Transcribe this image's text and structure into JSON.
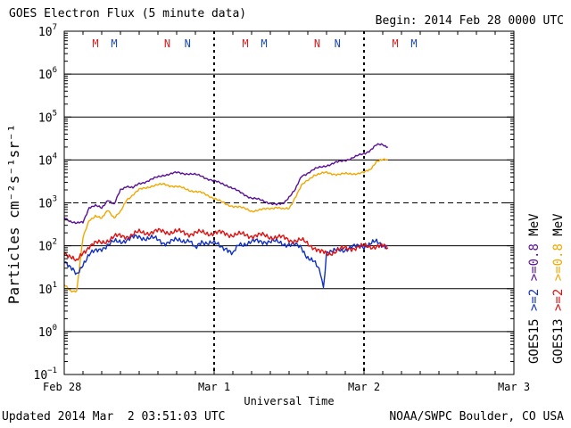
{
  "header": {
    "title": "GOES Electron Flux (5 minute data)",
    "begin": "Begin: 2014 Feb 28 0000 UTC"
  },
  "footer": {
    "updated": "Updated 2014 Mar  2 03:51:03 UTC",
    "credit": "NOAA/SWPC Boulder, CO USA"
  },
  "colors": {
    "goes15_e08": "#5a0f96",
    "goes13_e08": "#f0a800",
    "goes15_e2": "#1030c0",
    "goes13_e2": "#e01010",
    "marker_m": "#d02020",
    "marker_n": "#1848c0"
  },
  "chart_data": {
    "type": "line",
    "title": "GOES Electron Flux (5 minute data)",
    "xlabel": "Universal Time",
    "ylabel": "Particles cm⁻²s⁻¹sr⁻¹",
    "y_scale": "log",
    "ylim": [
      0.1,
      10000000
    ],
    "y_ticks": [
      {
        "value": 10000000,
        "base": "10",
        "exp": "7"
      },
      {
        "value": 1000000,
        "base": "10",
        "exp": "6"
      },
      {
        "value": 100000,
        "base": "10",
        "exp": "5"
      },
      {
        "value": 10000,
        "base": "10",
        "exp": "4"
      },
      {
        "value": 1000,
        "base": "10",
        "exp": "3"
      },
      {
        "value": 100,
        "base": "10",
        "exp": "2"
      },
      {
        "value": 10,
        "base": "10",
        "exp": "1"
      },
      {
        "value": 1,
        "base": "10",
        "exp": "0"
      },
      {
        "value": 0.1,
        "base": "10",
        "exp": "−1"
      }
    ],
    "xlim": [
      "2014-02-28T00:00",
      "2014-03-03T00:00"
    ],
    "x_ticks": [
      {
        "value": "2014-02-28T00:00",
        "label": "Feb 28"
      },
      {
        "value": "2014-03-01T00:00",
        "label": "Mar 1"
      },
      {
        "value": "2014-03-02T00:00",
        "label": "Mar 2"
      },
      {
        "value": "2014-03-03T00:00",
        "label": "Mar 3"
      }
    ],
    "alert_threshold": 1000,
    "markers": [
      {
        "label": "M",
        "time": "2014-02-28T05:00",
        "color": "#d02020"
      },
      {
        "label": "M",
        "time": "2014-02-28T08:00",
        "color": "#1848c0"
      },
      {
        "label": "N",
        "time": "2014-02-28T16:30",
        "color": "#d02020"
      },
      {
        "label": "N",
        "time": "2014-02-28T19:45",
        "color": "#1848c0"
      },
      {
        "label": "M",
        "time": "2014-03-01T05:00",
        "color": "#d02020"
      },
      {
        "label": "M",
        "time": "2014-03-01T08:00",
        "color": "#1848c0"
      },
      {
        "label": "N",
        "time": "2014-03-01T16:30",
        "color": "#d02020"
      },
      {
        "label": "N",
        "time": "2014-03-01T19:45",
        "color": "#1848c0"
      },
      {
        "label": "M",
        "time": "2014-03-02T05:00",
        "color": "#d02020"
      },
      {
        "label": "M",
        "time": "2014-03-02T08:00",
        "color": "#1848c0"
      }
    ],
    "legend": [
      {
        "text": "GOES15  >=2  >=0.8  MeV",
        "color": "#000000"
      },
      {
        "text": "GOES13  >=2  >=0.8  MeV",
        "color": "#000000"
      }
    ],
    "legend_parts": {
      "goes15": "GOES15",
      "goes13": "GOES13",
      "ge2": ">=2",
      "ge08": ">=0.8",
      "mev": "MeV"
    },
    "series": [
      {
        "name": "GOES15 >=0.8 MeV",
        "color": "#5a0f96",
        "x": [
          "2014-02-28T00:00",
          "2014-02-28T01:00",
          "2014-02-28T02:00",
          "2014-02-28T03:00",
          "2014-02-28T04:00",
          "2014-02-28T05:00",
          "2014-02-28T06:00",
          "2014-02-28T07:00",
          "2014-02-28T08:00",
          "2014-02-28T09:00",
          "2014-02-28T10:00",
          "2014-02-28T11:00",
          "2014-02-28T12:00",
          "2014-02-28T14:00",
          "2014-02-28T16:00",
          "2014-02-28T18:00",
          "2014-02-28T20:00",
          "2014-02-28T22:00",
          "2014-03-01T00:00",
          "2014-03-01T02:00",
          "2014-03-01T04:00",
          "2014-03-01T06:00",
          "2014-03-01T08:00",
          "2014-03-01T10:00",
          "2014-03-01T11:00",
          "2014-03-01T12:00",
          "2014-03-01T13:00",
          "2014-03-01T14:00",
          "2014-03-01T16:00",
          "2014-03-01T18:00",
          "2014-03-01T20:00",
          "2014-03-01T22:00",
          "2014-03-02T00:00",
          "2014-03-02T01:00",
          "2014-03-02T02:00",
          "2014-03-02T03:00",
          "2014-03-02T03:50"
        ],
        "y": [
          450,
          380,
          330,
          350,
          800,
          850,
          750,
          1200,
          900,
          2000,
          2500,
          2200,
          2800,
          3500,
          4500,
          5000,
          4800,
          4200,
          3200,
          2600,
          1800,
          1300,
          1100,
          900,
          950,
          1400,
          2000,
          4200,
          6000,
          7500,
          9000,
          11000,
          14000,
          17000,
          22000,
          23000,
          20000
        ]
      },
      {
        "name": "GOES13 >=0.8 MeV",
        "color": "#f0a800",
        "x": [
          "2014-02-28T00:00",
          "2014-02-28T01:00",
          "2014-02-28T02:00",
          "2014-02-28T03:00",
          "2014-02-28T04:00",
          "2014-02-28T05:00",
          "2014-02-28T06:00",
          "2014-02-28T07:00",
          "2014-02-28T08:00",
          "2014-02-28T09:00",
          "2014-02-28T10:00",
          "2014-02-28T12:00",
          "2014-02-28T14:00",
          "2014-02-28T16:00",
          "2014-02-28T18:00",
          "2014-02-28T20:00",
          "2014-02-28T22:00",
          "2014-03-01T00:00",
          "2014-03-01T02:00",
          "2014-03-01T04:00",
          "2014-03-01T06:00",
          "2014-03-01T08:00",
          "2014-03-01T10:00",
          "2014-03-01T11:00",
          "2014-03-01T12:00",
          "2014-03-01T14:00",
          "2014-03-01T16:00",
          "2014-03-01T18:00",
          "2014-03-01T20:00",
          "2014-03-01T22:00",
          "2014-03-02T00:00",
          "2014-03-02T01:00",
          "2014-03-02T02:00",
          "2014-03-02T03:50"
        ],
        "y": [
          12,
          9,
          9,
          150,
          400,
          500,
          420,
          700,
          450,
          600,
          1200,
          2000,
          2500,
          2700,
          2400,
          2000,
          1700,
          1300,
          900,
          800,
          650,
          700,
          800,
          700,
          750,
          2500,
          4500,
          5000,
          4600,
          4800,
          5000,
          6000,
          9500,
          10000
        ]
      },
      {
        "name": "GOES15 >=2 MeV",
        "color": "#1030c0",
        "x": [
          "2014-02-28T00:00",
          "2014-02-28T01:00",
          "2014-02-28T02:00",
          "2014-02-28T03:00",
          "2014-02-28T04:00",
          "2014-02-28T06:00",
          "2014-02-28T08:00",
          "2014-02-28T10:00",
          "2014-02-28T12:00",
          "2014-02-28T14:00",
          "2014-02-28T16:00",
          "2014-02-28T18:00",
          "2014-02-28T20:00",
          "2014-02-28T21:00",
          "2014-02-28T22:00",
          "2014-03-01T00:00",
          "2014-03-01T02:00",
          "2014-03-01T03:00",
          "2014-03-01T04:00",
          "2014-03-01T06:00",
          "2014-03-01T08:00",
          "2014-03-01T10:00",
          "2014-03-01T12:00",
          "2014-03-01T14:00",
          "2014-03-01T15:00",
          "2014-03-01T16:00",
          "2014-03-01T17:00",
          "2014-03-01T17:30",
          "2014-03-01T18:00",
          "2014-03-01T19:00",
          "2014-03-01T20:00",
          "2014-03-01T22:00",
          "2014-03-02T00:00",
          "2014-03-02T01:00",
          "2014-03-02T02:00",
          "2014-03-02T03:50"
        ],
        "y": [
          50,
          30,
          20,
          40,
          60,
          90,
          120,
          140,
          160,
          150,
          120,
          130,
          140,
          80,
          130,
          110,
          90,
          60,
          110,
          120,
          130,
          120,
          110,
          90,
          55,
          40,
          25,
          11,
          75,
          70,
          80,
          90,
          100,
          110,
          120,
          100
        ]
      },
      {
        "name": "GOES13 >=2 MeV",
        "color": "#e01010",
        "x": [
          "2014-02-28T00:00",
          "2014-02-28T01:00",
          "2014-02-28T02:00",
          "2014-02-28T03:00",
          "2014-02-28T04:00",
          "2014-02-28T06:00",
          "2014-02-28T08:00",
          "2014-02-28T10:00",
          "2014-02-28T12:00",
          "2014-02-28T14:00",
          "2014-02-28T16:00",
          "2014-02-28T18:00",
          "2014-02-28T20:00",
          "2014-02-28T22:00",
          "2014-03-01T00:00",
          "2014-03-01T02:00",
          "2014-03-01T04:00",
          "2014-03-01T06:00",
          "2014-03-01T08:00",
          "2014-03-01T10:00",
          "2014-03-01T12:00",
          "2014-03-01T14:00",
          "2014-03-01T16:00",
          "2014-03-01T17:00",
          "2014-03-01T18:00",
          "2014-03-01T20:00",
          "2014-03-01T22:00",
          "2014-03-02T00:00",
          "2014-03-02T02:00",
          "2014-03-02T03:50"
        ],
        "y": [
          70,
          60,
          40,
          70,
          100,
          120,
          160,
          170,
          200,
          210,
          215,
          210,
          195,
          200,
          200,
          190,
          180,
          175,
          170,
          160,
          140,
          130,
          95,
          70,
          65,
          80,
          90,
          95,
          100,
          90
        ]
      }
    ]
  }
}
